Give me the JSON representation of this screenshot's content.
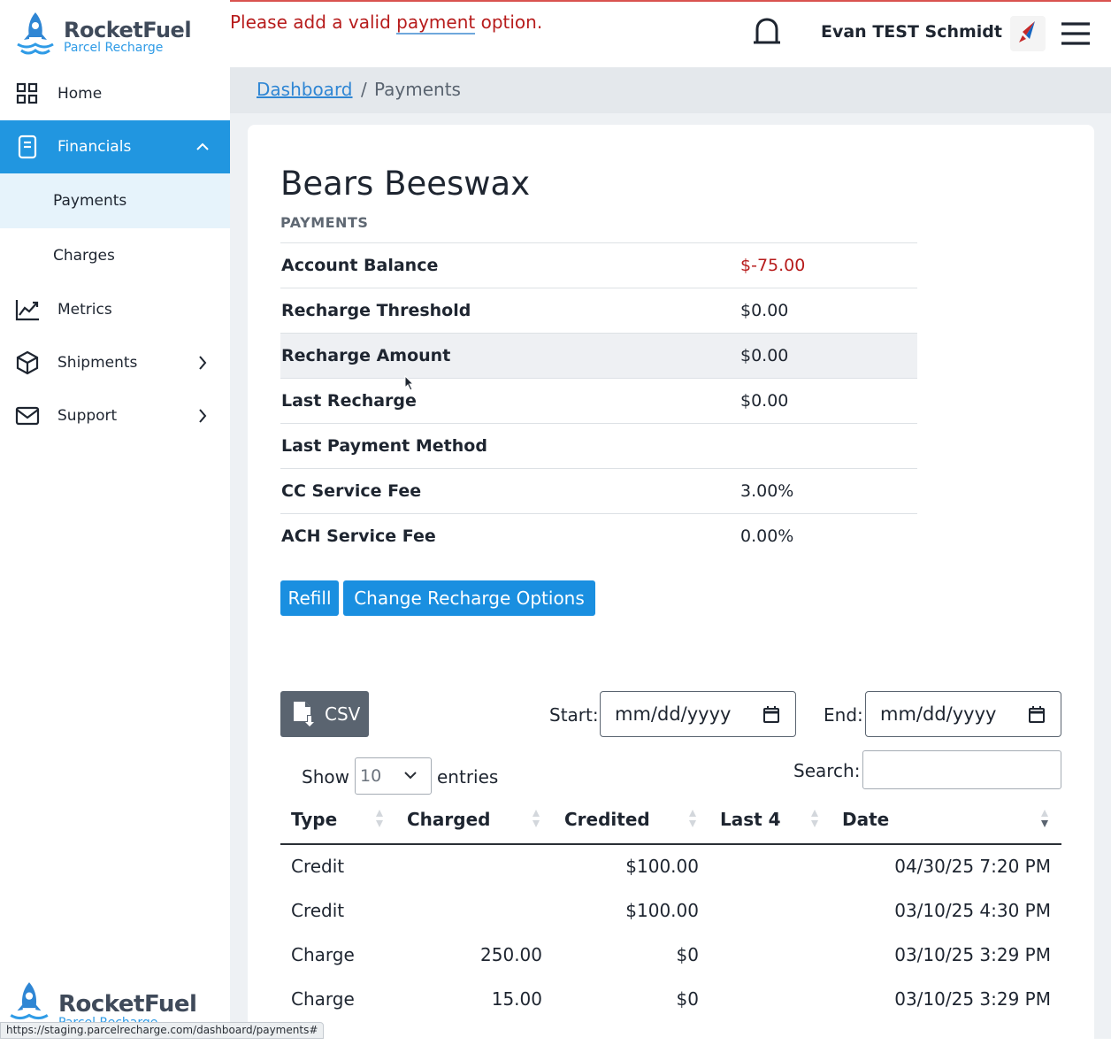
{
  "brand": {
    "name": "RocketFuel",
    "subtitle": "Parcel Recharge"
  },
  "header": {
    "alert_pre": "Please add a valid ",
    "alert_link": "payment",
    "alert_post": " option.",
    "username": "Evan TEST Schmidt"
  },
  "sidebar": {
    "items": [
      {
        "label": "Home",
        "icon": "grid-icon"
      },
      {
        "label": "Financials",
        "icon": "receipt-icon",
        "expanded": true
      },
      {
        "label": "Payments",
        "active": true
      },
      {
        "label": "Charges"
      },
      {
        "label": "Metrics",
        "icon": "chart-line-icon"
      },
      {
        "label": "Shipments",
        "icon": "box-icon"
      },
      {
        "label": "Support",
        "icon": "mail-icon"
      }
    ]
  },
  "breadcrumb": {
    "link": "Dashboard",
    "separator": "/",
    "current": "Payments"
  },
  "main": {
    "company": "Bears Beeswax",
    "section": "PAYMENTS",
    "info": [
      {
        "label": "Account Balance",
        "value": "$-75.00"
      },
      {
        "label": "Recharge Threshold",
        "value": "$0.00"
      },
      {
        "label": "Recharge Amount",
        "value": "$0.00"
      },
      {
        "label": "Last Recharge",
        "value": "$0.00"
      },
      {
        "label": "Last Payment Method",
        "value": ""
      },
      {
        "label": "CC Service Fee",
        "value": "3.00%"
      },
      {
        "label": "ACH Service Fee",
        "value": "0.00%"
      }
    ],
    "buttons": {
      "refill": "Refill",
      "change": "Change Recharge Options"
    }
  },
  "table_controls": {
    "csv": "CSV",
    "start_label": "Start:",
    "end_label": "End:",
    "date_placeholder": "mm/dd/yyyy",
    "show_label": "Show",
    "entries_value": "10",
    "entries_label": "entries",
    "search_label": "Search:"
  },
  "table": {
    "columns": [
      "Type",
      "Charged",
      "Credited",
      "Last 4",
      "Date"
    ],
    "rows": [
      {
        "type": "Credit",
        "charged": "",
        "credited": "$100.00",
        "last4": "",
        "date": "04/30/25 7:20 PM"
      },
      {
        "type": "Credit",
        "charged": "",
        "credited": "$100.00",
        "last4": "",
        "date": "03/10/25 4:30 PM"
      },
      {
        "type": "Charge",
        "charged": "250.00",
        "credited": "$0",
        "last4": "",
        "date": "03/10/25 3:29 PM"
      },
      {
        "type": "Charge",
        "charged": "15.00",
        "credited": "$0",
        "last4": "",
        "date": "03/10/25 3:29 PM"
      }
    ]
  },
  "statusbar": "https://staging.parcelrecharge.com/dashboard/payments#",
  "colors": {
    "accent": "#2196e0",
    "negative": "#b71c1c",
    "alert": "#b71c1c"
  }
}
